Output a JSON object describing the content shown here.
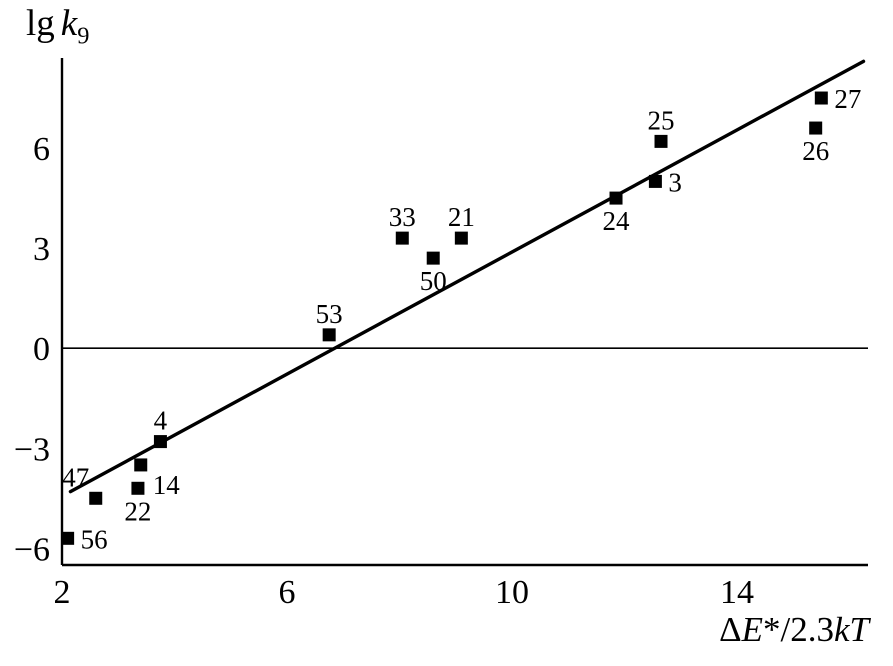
{
  "figure": {
    "background": "#ffffff",
    "ink": "#000000"
  },
  "chart_data": {
    "type": "scatter",
    "title": "",
    "ylabel_text": "lg k9",
    "xlabel_text": "ΔE*/2.3kT",
    "y_axis_label": {
      "prefix": "lg",
      "symbol": "k",
      "subscript": "9"
    },
    "x_axis_label": {
      "prefix": "Δ",
      "symbol": "E",
      "middle": "*/2.3",
      "suffix": "kT"
    },
    "x_range": [
      2,
      16.33
    ],
    "y_range": [
      -6.5,
      8.7
    ],
    "x_ticks": [
      {
        "v": 2,
        "label": "2"
      },
      {
        "v": 6,
        "label": "6"
      },
      {
        "v": 10,
        "label": "10"
      },
      {
        "v": 14,
        "label": "14"
      }
    ],
    "y_ticks": [
      {
        "v": -6,
        "label": "−6"
      },
      {
        "v": -3,
        "label": "−3"
      },
      {
        "v": 0,
        "label": "0"
      },
      {
        "v": 3,
        "label": "3"
      },
      {
        "v": 6,
        "label": "6"
      }
    ],
    "grid": false,
    "legend": false,
    "marker": "filled-square",
    "zero_line": {
      "y": 0,
      "x_start": 2,
      "x_end": 16.33
    },
    "regression_line": {
      "x1": 2.15,
      "y1": -4.3,
      "x2": 16.25,
      "y2": 8.6
    },
    "points": [
      {
        "label": "56",
        "x": 2.1,
        "y": -5.7,
        "label_pos": "right"
      },
      {
        "label": "47",
        "x": 2.6,
        "y": -4.5,
        "label_pos": "above-left"
      },
      {
        "label": "22",
        "x": 3.35,
        "y": -4.2,
        "label_pos": "below"
      },
      {
        "label": "14",
        "x": 3.4,
        "y": -3.5,
        "label_pos": "below-right"
      },
      {
        "label": "4",
        "x": 3.75,
        "y": -2.8,
        "label_pos": "above"
      },
      {
        "label": "53",
        "x": 6.75,
        "y": 0.4,
        "label_pos": "above"
      },
      {
        "label": "33",
        "x": 8.05,
        "y": 3.3,
        "label_pos": "above"
      },
      {
        "label": "50",
        "x": 8.6,
        "y": 2.7,
        "label_pos": "below"
      },
      {
        "label": "21",
        "x": 9.1,
        "y": 3.3,
        "label_pos": "above"
      },
      {
        "label": "24",
        "x": 11.85,
        "y": 4.5,
        "label_pos": "below"
      },
      {
        "label": "3",
        "x": 12.55,
        "y": 5.0,
        "label_pos": "right"
      },
      {
        "label": "25",
        "x": 12.65,
        "y": 6.2,
        "label_pos": "above"
      },
      {
        "label": "26",
        "x": 15.4,
        "y": 6.6,
        "label_pos": "below"
      },
      {
        "label": "27",
        "x": 15.5,
        "y": 7.5,
        "label_pos": "right"
      }
    ]
  }
}
